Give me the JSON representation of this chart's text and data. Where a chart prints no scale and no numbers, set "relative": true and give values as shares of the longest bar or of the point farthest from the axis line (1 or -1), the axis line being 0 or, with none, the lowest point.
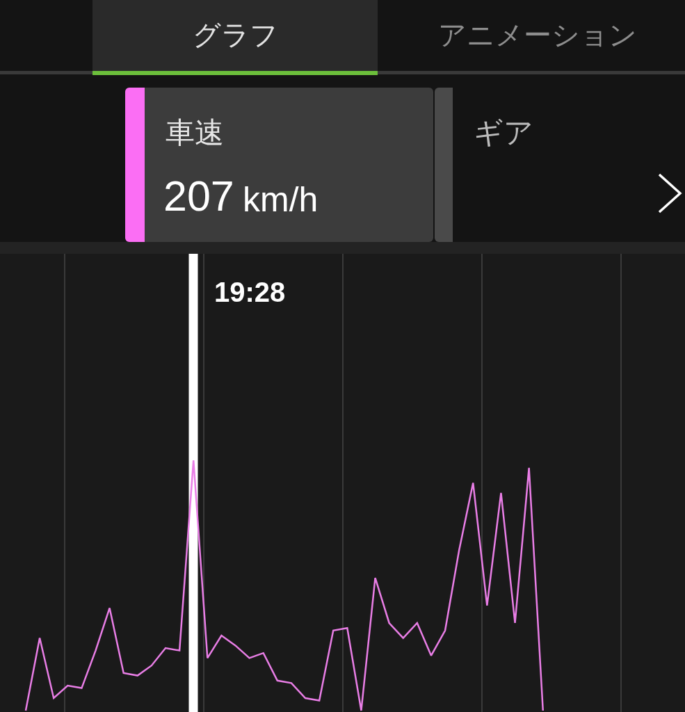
{
  "chart_data": {
    "type": "line",
    "categories": [
      null,
      null,
      null,
      null,
      null,
      null,
      null,
      null,
      null,
      null,
      null,
      null,
      null,
      null,
      null,
      null,
      null,
      null,
      null,
      null,
      null,
      null,
      null,
      null,
      null,
      null,
      null,
      null,
      null,
      null,
      null,
      null,
      null,
      null,
      null,
      null,
      null,
      null
    ],
    "values": [
      0,
      0.29,
      0.05,
      0.1,
      0.09,
      0.24,
      0.41,
      0.15,
      0.14,
      0.18,
      0.25,
      0.24,
      1,
      0.21,
      0.3,
      0.26,
      0.21,
      0.23,
      0.12,
      0.11,
      0.05,
      0.04,
      0.32,
      0.33,
      0,
      0.53,
      0.35,
      0.29,
      0.35,
      0.22,
      0.32,
      0.64,
      0.91,
      0.42,
      0.87,
      0.35,
      0.97,
      0
    ],
    "color": "#e97ee6",
    "relative": true,
    "grid": "x",
    "annotations": [
      "グラフ",
      "アニメーション",
      "車速",
      "207",
      "km/h",
      "ギア",
      "19:28"
    ]
  }
}
